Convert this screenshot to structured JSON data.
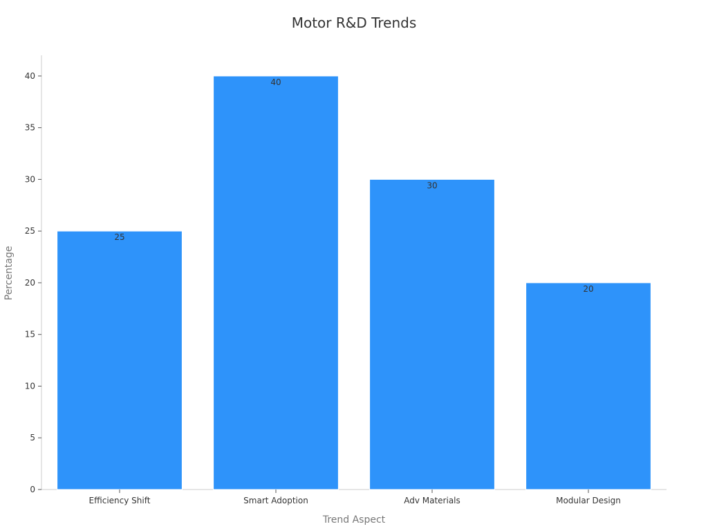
{
  "chart_data": {
    "type": "bar",
    "title": "Motor R&D Trends",
    "xlabel": "Trend Aspect",
    "ylabel": "Percentage",
    "categories": [
      "Efficiency Shift",
      "Smart Adoption",
      "Adv Materials",
      "Modular Design"
    ],
    "values": [
      25,
      40,
      30,
      20
    ],
    "ylim": [
      0,
      42
    ],
    "yticks": [
      0,
      5,
      10,
      15,
      20,
      25,
      30,
      35,
      40
    ],
    "grid": false,
    "data_labels": true,
    "bar_color": "#2e93fa"
  }
}
